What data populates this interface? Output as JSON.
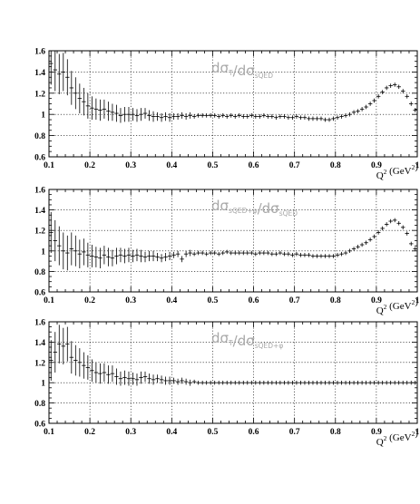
{
  "colors": {
    "axis": "#000000",
    "grid": "#000000",
    "annotation": "#a8a8a8",
    "marker": "#000000"
  },
  "chart_data": [
    {
      "type": "scatter",
      "annotation": {
        "num_main": "dσ",
        "num_sub": "T",
        "den_main": "dσ",
        "den_sub": "sQED"
      },
      "xlabel": {
        "main": "Q",
        "sup": "2",
        "unit_open": " (GeV",
        "unit_sup": "2",
        "unit_close": ")"
      },
      "show_xlabel": true,
      "xlim": [
        0.1,
        1.0
      ],
      "ylim": [
        0.6,
        1.6
      ],
      "xticks": [
        0.1,
        0.2,
        0.3,
        0.4,
        0.5,
        0.6,
        0.7,
        0.8,
        0.9,
        1.0
      ],
      "xtick_labels": [
        "0.1",
        "0.2",
        "0.3",
        "0.4",
        "0.5",
        "0.6",
        "0.7",
        "0.8",
        "0.9",
        "1"
      ],
      "yticks": [
        0.6,
        0.8,
        1.0,
        1.2,
        1.4,
        1.6
      ],
      "ytick_labels": [
        "0.6",
        "0.8",
        "1",
        "1.2",
        "1.4",
        "1.6"
      ],
      "grid": true,
      "series": [
        {
          "x": [
            0.105,
            0.115,
            0.125,
            0.135,
            0.145,
            0.155,
            0.165,
            0.175,
            0.185,
            0.195,
            0.205,
            0.215,
            0.225,
            0.235,
            0.245,
            0.255,
            0.265,
            0.275,
            0.285,
            0.295,
            0.305,
            0.315,
            0.325,
            0.335,
            0.345,
            0.355,
            0.365,
            0.375,
            0.385,
            0.395,
            0.405,
            0.415,
            0.425,
            0.435,
            0.445,
            0.455,
            0.465,
            0.475,
            0.485,
            0.495,
            0.505,
            0.515,
            0.525,
            0.535,
            0.545,
            0.555,
            0.565,
            0.575,
            0.585,
            0.595,
            0.605,
            0.615,
            0.625,
            0.635,
            0.645,
            0.655,
            0.665,
            0.675,
            0.685,
            0.695,
            0.705,
            0.715,
            0.725,
            0.735,
            0.745,
            0.755,
            0.765,
            0.775,
            0.785,
            0.795,
            0.805,
            0.815,
            0.825,
            0.835,
            0.845,
            0.855,
            0.865,
            0.875,
            0.885,
            0.895,
            0.905,
            0.915,
            0.925,
            0.935,
            0.945,
            0.955,
            0.965,
            0.975,
            0.985,
            0.995
          ],
          "y": [
            1.48,
            1.42,
            1.38,
            1.4,
            1.35,
            1.25,
            1.2,
            1.15,
            1.12,
            1.08,
            1.06,
            1.05,
            1.04,
            1.05,
            1.03,
            1.02,
            1.01,
            0.99,
            1.0,
            1.0,
            1.0,
            0.99,
            1.0,
            1.01,
            0.99,
            0.98,
            0.98,
            0.97,
            0.98,
            0.97,
            0.98,
            0.98,
            0.99,
            0.98,
            0.99,
            0.98,
            0.99,
            0.99,
            0.99,
            0.99,
            0.99,
            0.98,
            0.99,
            0.98,
            0.99,
            0.98,
            0.99,
            0.98,
            0.98,
            0.99,
            0.98,
            0.98,
            0.99,
            0.98,
            0.98,
            0.97,
            0.98,
            0.98,
            0.97,
            0.97,
            0.98,
            0.97,
            0.97,
            0.96,
            0.96,
            0.96,
            0.96,
            0.95,
            0.95,
            0.96,
            0.97,
            0.98,
            0.99,
            1.0,
            1.02,
            1.03,
            1.05,
            1.07,
            1.1,
            1.13,
            1.17,
            1.21,
            1.25,
            1.27,
            1.28,
            1.26,
            1.22,
            1.17,
            1.1,
            1.04
          ],
          "err": [
            0.2,
            0.2,
            0.19,
            0.18,
            0.17,
            0.16,
            0.15,
            0.14,
            0.13,
            0.12,
            0.11,
            0.1,
            0.1,
            0.09,
            0.09,
            0.08,
            0.08,
            0.07,
            0.07,
            0.07,
            0.06,
            0.06,
            0.06,
            0.05,
            0.05,
            0.05,
            0.04,
            0.04,
            0.04,
            0.04,
            0.03,
            0.03,
            0.03,
            0.03,
            0.03,
            0.02,
            0.02,
            0.02,
            0.02,
            0.02,
            0.02,
            0.02,
            0.02,
            0.02,
            0.02,
            0.02,
            0.02,
            0.02,
            0.02,
            0.02,
            0.02,
            0.02,
            0.02,
            0.02,
            0.02,
            0.02,
            0.02,
            0.02,
            0.02,
            0.02,
            0.02,
            0.02,
            0.02,
            0.02,
            0.02,
            0.02,
            0.02,
            0.02,
            0.02,
            0.02,
            0.02,
            0.02,
            0.02,
            0.02,
            0.02,
            0.02,
            0.02,
            0.02,
            0.02,
            0.02,
            0.02,
            0.02,
            0.02,
            0.02,
            0.02,
            0.02,
            0.02,
            0.02,
            0.02,
            0.02
          ]
        }
      ]
    },
    {
      "type": "scatter",
      "annotation": {
        "num_main": "dσ",
        "num_sub": "sQED+φ",
        "den_main": "dσ",
        "den_sub": "sQED"
      },
      "xlabel": {
        "main": "Q",
        "sup": "2",
        "unit_open": " (GeV",
        "unit_sup": "2",
        "unit_close": ")"
      },
      "show_xlabel": true,
      "xlim": [
        0.1,
        1.0
      ],
      "ylim": [
        0.6,
        1.6
      ],
      "xticks": [
        0.1,
        0.2,
        0.3,
        0.4,
        0.5,
        0.6,
        0.7,
        0.8,
        0.9,
        1.0
      ],
      "xtick_labels": [
        "0.1",
        "0.2",
        "0.3",
        "0.4",
        "0.5",
        "0.6",
        "0.7",
        "0.8",
        "0.9",
        "1"
      ],
      "yticks": [
        0.6,
        0.8,
        1.0,
        1.2,
        1.4,
        1.6
      ],
      "ytick_labels": [
        "0.6",
        "0.8",
        "1",
        "1.2",
        "1.4",
        "1.6"
      ],
      "grid": true,
      "series": [
        {
          "x": [
            0.105,
            0.115,
            0.125,
            0.135,
            0.145,
            0.155,
            0.165,
            0.175,
            0.185,
            0.195,
            0.205,
            0.215,
            0.225,
            0.235,
            0.245,
            0.255,
            0.265,
            0.275,
            0.285,
            0.295,
            0.305,
            0.315,
            0.325,
            0.335,
            0.345,
            0.355,
            0.365,
            0.375,
            0.385,
            0.395,
            0.405,
            0.415,
            0.425,
            0.435,
            0.445,
            0.455,
            0.465,
            0.475,
            0.485,
            0.495,
            0.505,
            0.515,
            0.525,
            0.535,
            0.545,
            0.555,
            0.565,
            0.575,
            0.585,
            0.595,
            0.605,
            0.615,
            0.625,
            0.635,
            0.645,
            0.655,
            0.665,
            0.675,
            0.685,
            0.695,
            0.705,
            0.715,
            0.725,
            0.735,
            0.745,
            0.755,
            0.765,
            0.775,
            0.785,
            0.795,
            0.805,
            0.815,
            0.825,
            0.835,
            0.845,
            0.855,
            0.865,
            0.875,
            0.885,
            0.895,
            0.905,
            0.915,
            0.925,
            0.935,
            0.945,
            0.955,
            0.965,
            0.975,
            0.985,
            0.995
          ],
          "y": [
            1.18,
            1.1,
            1.05,
            1.0,
            0.98,
            1.02,
            1.0,
            0.97,
            0.99,
            0.96,
            0.95,
            0.94,
            0.93,
            0.96,
            0.94,
            0.93,
            0.95,
            0.96,
            0.95,
            0.96,
            0.95,
            0.96,
            0.95,
            0.94,
            0.95,
            0.95,
            0.94,
            0.93,
            0.94,
            0.95,
            0.96,
            0.97,
            0.92,
            0.97,
            0.98,
            0.97,
            0.98,
            0.98,
            0.97,
            0.98,
            0.98,
            0.97,
            0.98,
            0.99,
            0.98,
            0.98,
            0.98,
            0.98,
            0.98,
            0.98,
            0.97,
            0.98,
            0.98,
            0.98,
            0.97,
            0.97,
            0.98,
            0.97,
            0.97,
            0.96,
            0.97,
            0.96,
            0.96,
            0.96,
            0.95,
            0.95,
            0.95,
            0.95,
            0.95,
            0.95,
            0.96,
            0.97,
            0.98,
            1.0,
            1.02,
            1.04,
            1.06,
            1.08,
            1.11,
            1.14,
            1.18,
            1.22,
            1.26,
            1.29,
            1.3,
            1.27,
            1.23,
            1.17,
            1.07,
            1.02
          ],
          "err": [
            0.2,
            0.2,
            0.19,
            0.18,
            0.17,
            0.16,
            0.15,
            0.14,
            0.13,
            0.12,
            0.11,
            0.1,
            0.1,
            0.09,
            0.09,
            0.08,
            0.08,
            0.07,
            0.07,
            0.07,
            0.06,
            0.06,
            0.06,
            0.05,
            0.05,
            0.05,
            0.04,
            0.04,
            0.04,
            0.04,
            0.03,
            0.03,
            0.03,
            0.03,
            0.03,
            0.02,
            0.02,
            0.02,
            0.02,
            0.02,
            0.02,
            0.02,
            0.02,
            0.02,
            0.02,
            0.02,
            0.02,
            0.02,
            0.02,
            0.02,
            0.02,
            0.02,
            0.02,
            0.02,
            0.02,
            0.02,
            0.02,
            0.02,
            0.02,
            0.02,
            0.02,
            0.02,
            0.02,
            0.02,
            0.02,
            0.02,
            0.02,
            0.02,
            0.02,
            0.02,
            0.02,
            0.02,
            0.02,
            0.02,
            0.02,
            0.02,
            0.02,
            0.02,
            0.02,
            0.02,
            0.02,
            0.02,
            0.02,
            0.02,
            0.02,
            0.02,
            0.02,
            0.02,
            0.02,
            0.02
          ]
        }
      ]
    },
    {
      "type": "scatter",
      "annotation": {
        "num_main": "dσ",
        "num_sub": "T",
        "den_main": "dσ",
        "den_sub": "sQED+φ"
      },
      "xlabel": {
        "main": "Q",
        "sup": "2",
        "unit_open": " (GeV",
        "unit_sup": "2",
        "unit_close": ")"
      },
      "show_xlabel": true,
      "xlim": [
        0.1,
        1.0
      ],
      "ylim": [
        0.6,
        1.6
      ],
      "xticks": [
        0.1,
        0.2,
        0.3,
        0.4,
        0.5,
        0.6,
        0.7,
        0.8,
        0.9,
        1.0
      ],
      "xtick_labels": [
        "0.1",
        "0.2",
        "0.3",
        "0.4",
        "0.5",
        "0.6",
        "0.7",
        "0.8",
        "0.9",
        "1"
      ],
      "yticks": [
        0.6,
        0.8,
        1.0,
        1.2,
        1.4,
        1.6
      ],
      "ytick_labels": [
        "0.6",
        "0.8",
        "1",
        "1.2",
        "1.4",
        "1.6"
      ],
      "grid": true,
      "series": [
        {
          "x": [
            0.105,
            0.115,
            0.125,
            0.135,
            0.145,
            0.155,
            0.165,
            0.175,
            0.185,
            0.195,
            0.205,
            0.215,
            0.225,
            0.235,
            0.245,
            0.255,
            0.265,
            0.275,
            0.285,
            0.295,
            0.305,
            0.315,
            0.325,
            0.335,
            0.345,
            0.355,
            0.365,
            0.375,
            0.385,
            0.395,
            0.405,
            0.415,
            0.425,
            0.435,
            0.445,
            0.455,
            0.465,
            0.475,
            0.485,
            0.495,
            0.505,
            0.515,
            0.525,
            0.535,
            0.545,
            0.555,
            0.565,
            0.575,
            0.585,
            0.595,
            0.605,
            0.615,
            0.625,
            0.635,
            0.645,
            0.655,
            0.665,
            0.675,
            0.685,
            0.695,
            0.705,
            0.715,
            0.725,
            0.735,
            0.745,
            0.755,
            0.765,
            0.775,
            0.785,
            0.795,
            0.805,
            0.815,
            0.825,
            0.835,
            0.845,
            0.855,
            0.865,
            0.875,
            0.885,
            0.895,
            0.905,
            0.915,
            0.925,
            0.935,
            0.945,
            0.955,
            0.965,
            0.975,
            0.985,
            0.995
          ],
          "y": [
            1.22,
            1.3,
            1.38,
            1.36,
            1.38,
            1.25,
            1.22,
            1.2,
            1.17,
            1.15,
            1.12,
            1.1,
            1.09,
            1.1,
            1.08,
            1.09,
            1.06,
            1.04,
            1.05,
            1.04,
            1.04,
            1.03,
            1.05,
            1.06,
            1.04,
            1.03,
            1.04,
            1.03,
            1.02,
            1.02,
            1.02,
            1.01,
            1.02,
            1.01,
            1.0,
            1.01,
            1.0,
            1.0,
            1.0,
            1.0,
            1.0,
            1.0,
            1.0,
            1.0,
            1.0,
            1.0,
            1.0,
            1.0,
            1.0,
            1.0,
            1.0,
            1.0,
            1.0,
            1.0,
            1.0,
            1.0,
            1.0,
            1.0,
            1.0,
            1.0,
            1.0,
            1.0,
            1.0,
            1.0,
            1.0,
            1.0,
            1.0,
            1.0,
            1.0,
            1.0,
            1.0,
            1.0,
            1.0,
            1.0,
            1.0,
            1.0,
            1.0,
            1.0,
            1.0,
            1.0,
            1.0,
            1.0,
            1.0,
            1.0,
            1.0,
            1.0,
            1.0,
            1.0,
            1.0,
            1.0
          ],
          "err": [
            0.2,
            0.2,
            0.19,
            0.18,
            0.17,
            0.16,
            0.15,
            0.14,
            0.13,
            0.12,
            0.11,
            0.1,
            0.1,
            0.09,
            0.09,
            0.08,
            0.08,
            0.07,
            0.07,
            0.07,
            0.06,
            0.06,
            0.06,
            0.05,
            0.05,
            0.05,
            0.04,
            0.04,
            0.04,
            0.04,
            0.03,
            0.03,
            0.03,
            0.03,
            0.03,
            0.02,
            0.02,
            0.02,
            0.02,
            0.02,
            0.02,
            0.02,
            0.02,
            0.02,
            0.02,
            0.02,
            0.02,
            0.02,
            0.02,
            0.02,
            0.02,
            0.02,
            0.02,
            0.02,
            0.02,
            0.02,
            0.02,
            0.02,
            0.02,
            0.02,
            0.02,
            0.02,
            0.02,
            0.02,
            0.02,
            0.02,
            0.02,
            0.02,
            0.02,
            0.02,
            0.02,
            0.02,
            0.02,
            0.02,
            0.02,
            0.02,
            0.02,
            0.02,
            0.02,
            0.02,
            0.02,
            0.02,
            0.02,
            0.02,
            0.02,
            0.02,
            0.02,
            0.02,
            0.02,
            0.02
          ]
        }
      ]
    }
  ]
}
